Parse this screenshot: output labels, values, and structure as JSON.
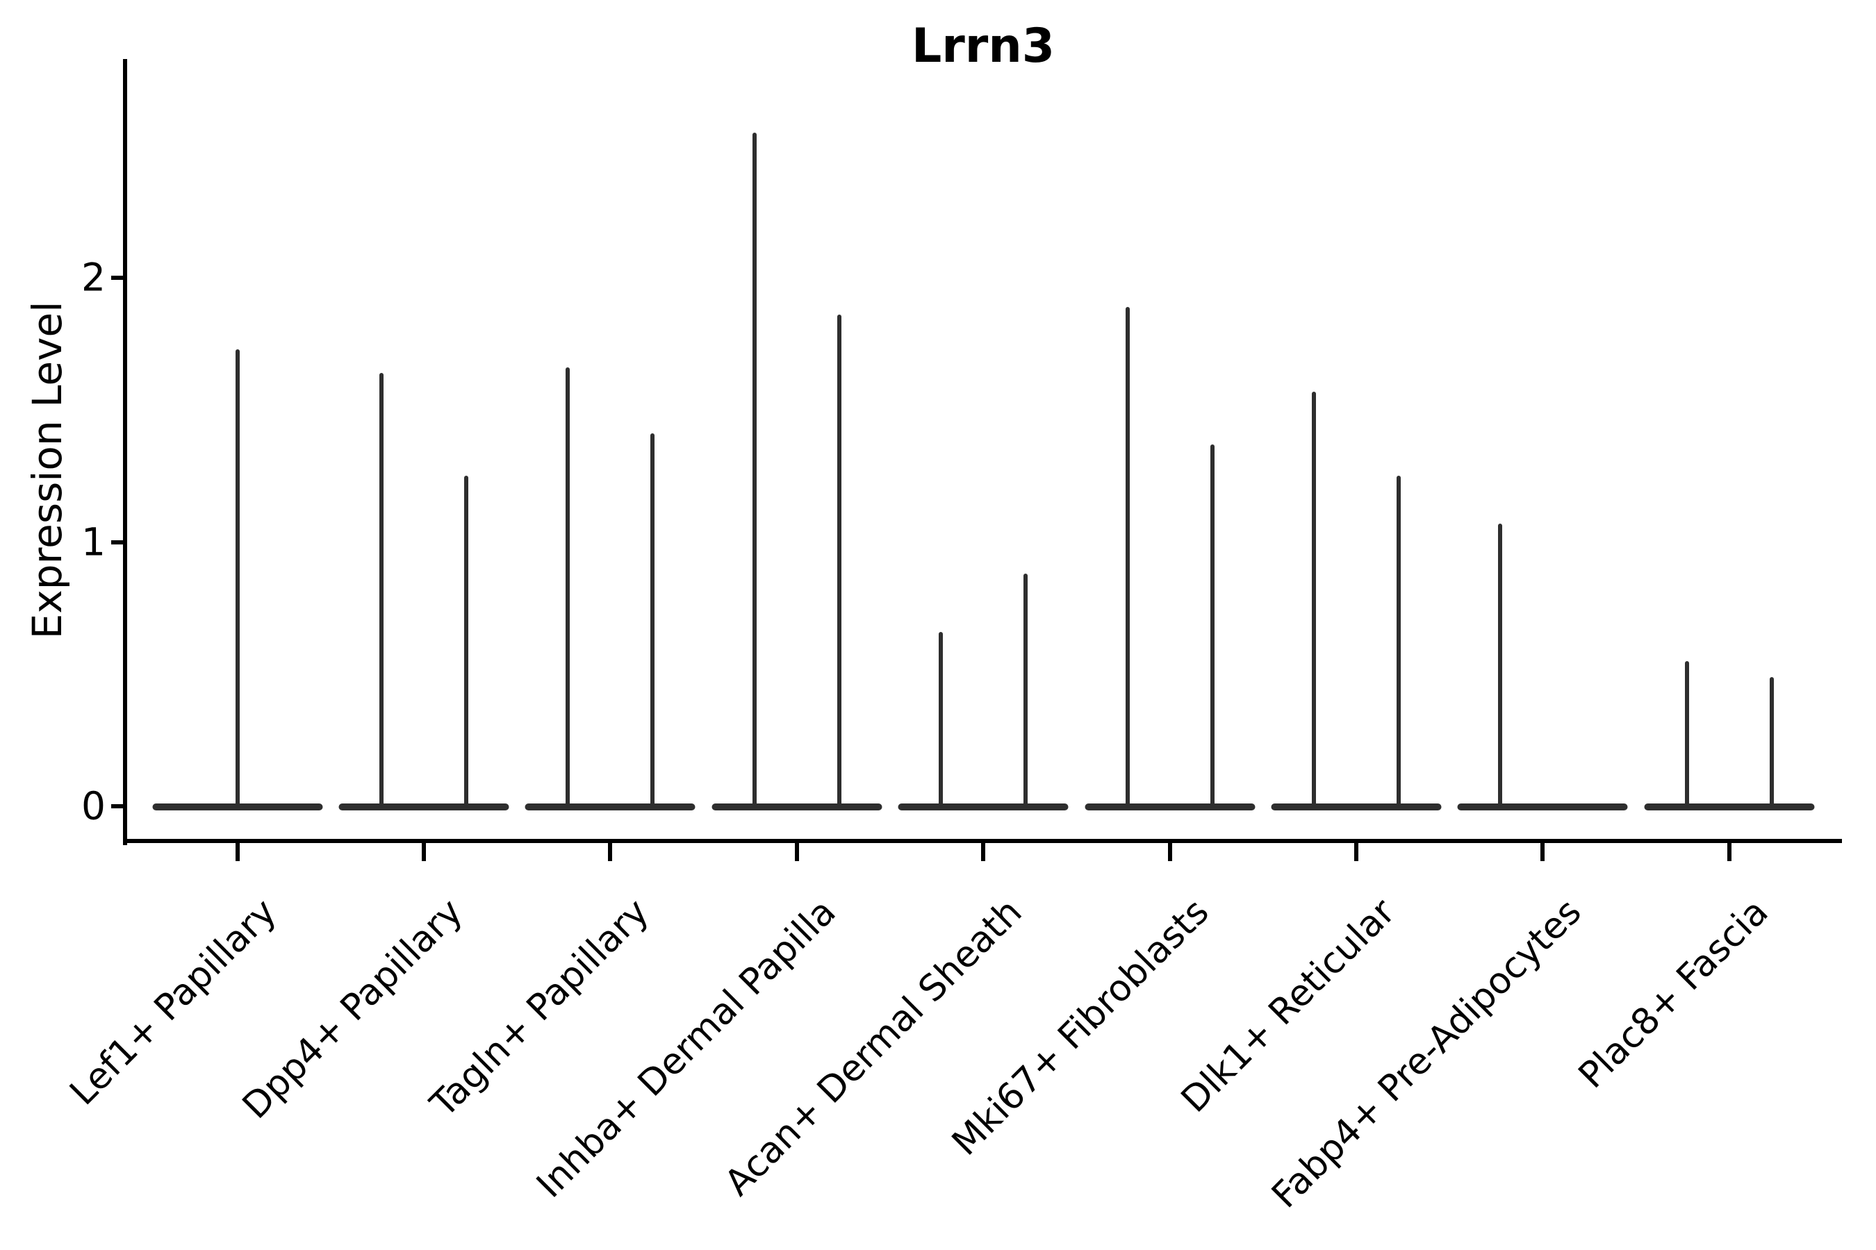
{
  "title": "Lrrn3",
  "y_axis": {
    "label": "Expression Level",
    "tick_labels": [
      "0",
      "1",
      "2"
    ]
  },
  "chart_data": {
    "type": "violin",
    "title": "Lrrn3",
    "xlabel": "",
    "ylabel": "Expression Level",
    "yticks": [
      0,
      1,
      2
    ],
    "ylim": [
      -0.13,
      2.83
    ],
    "grid": false,
    "legend_position": "none",
    "orientation": "vertical",
    "description": "Sparse single-cell expression violins: each violin is a wide flat base at 0 with a thin spike up to the max expression value. Most categories contain two side-by-side violins (left/right); Lef1+ Papillary has a single centered violin; the right violin of Fabp4+ Pre-Adipocytes is all zeros (no spike).",
    "categories": [
      "Lef1+ Papillary",
      "Dpp4+ Papillary",
      "Tagln+ Papillary",
      "Inhba+ Dermal Papilla",
      "Acan+ Dermal Sheath",
      "Mki67+ Fibroblasts",
      "Dlk1+ Reticular",
      "Fabp4+ Pre-Adipocytes",
      "Plac8+ Fascia"
    ],
    "violins": [
      {
        "category": "Lef1+ Papillary",
        "violins": [
          {
            "position": "center",
            "max": 1.73
          }
        ]
      },
      {
        "category": "Dpp4+ Papillary",
        "violins": [
          {
            "position": "left",
            "max": 1.64
          },
          {
            "position": "right",
            "max": 1.25
          }
        ]
      },
      {
        "category": "Tagln+ Papillary",
        "violins": [
          {
            "position": "left",
            "max": 1.66
          },
          {
            "position": "right",
            "max": 1.41
          }
        ]
      },
      {
        "category": "Inhba+ Dermal Papilla",
        "violins": [
          {
            "position": "left",
            "max": 2.55
          },
          {
            "position": "right",
            "max": 1.86
          }
        ]
      },
      {
        "category": "Acan+ Dermal Sheath",
        "violins": [
          {
            "position": "left",
            "max": 0.66
          },
          {
            "position": "right",
            "max": 0.88
          }
        ]
      },
      {
        "category": "Mki67+ Fibroblasts",
        "violins": [
          {
            "position": "left",
            "max": 1.89
          },
          {
            "position": "right",
            "max": 1.37
          }
        ]
      },
      {
        "category": "Dlk1+ Reticular",
        "violins": [
          {
            "position": "left",
            "max": 1.57
          },
          {
            "position": "right",
            "max": 1.25
          }
        ]
      },
      {
        "category": "Fabp4+ Pre-Adipocytes",
        "violins": [
          {
            "position": "left",
            "max": 1.07
          },
          {
            "position": "right",
            "max": 0
          }
        ]
      },
      {
        "category": "Plac8+ Fascia",
        "violins": [
          {
            "position": "left",
            "max": 0.55
          },
          {
            "position": "right",
            "max": 0.49
          }
        ]
      }
    ],
    "colors": {
      "violin": "#2e2e2e",
      "axis": "#000000",
      "text": "#000000",
      "background": "#ffffff"
    }
  }
}
